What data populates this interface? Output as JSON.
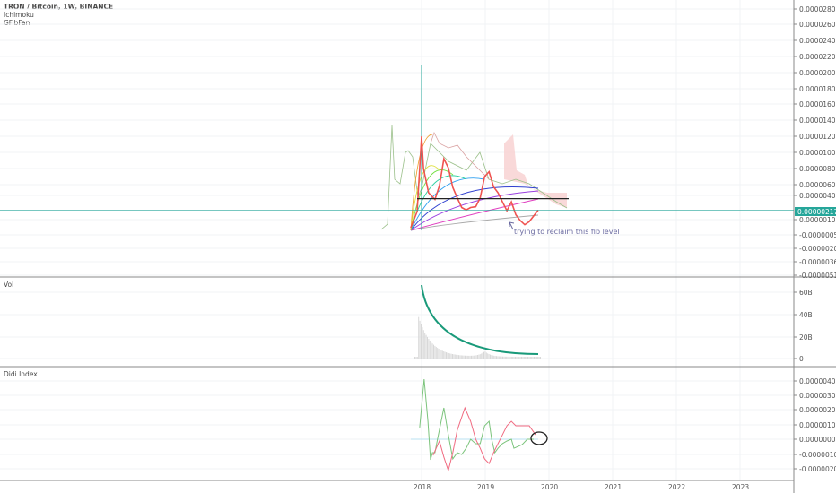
{
  "header": {
    "symbol_title": "TRON / Bitcoin, 1W, BINANCE",
    "indicators": [
      "Ichimoku",
      "GFibFan"
    ]
  },
  "colors": {
    "accent": "#26a69a",
    "price_up": "#26a69a",
    "price_down": "#ef5350",
    "didi_green": "#7cc47c",
    "didi_red": "#f06a80",
    "volume_curve": "#1a9a7a",
    "cloud": "#f8c8c8"
  },
  "chart_data": [
    {
      "type": "line",
      "pane": "price",
      "xlabel": "",
      "ylabel": "",
      "x_ticks": [
        "2018",
        "2019",
        "2020",
        "2021",
        "2022",
        "2023"
      ],
      "y_ticks": [
        "0.00002800",
        "0.00002600",
        "0.00002400",
        "0.00002200",
        "0.00002000",
        "0.00001800",
        "0.00001600",
        "0.00001400",
        "0.00001200",
        "0.00001000",
        "0.00000800",
        "0.00000600",
        "0.00000400",
        "0.00000100",
        "-0.00000050",
        "-0.00000200",
        "-0.00000360",
        "-0.00000510"
      ],
      "last_price_label": "0.00000217",
      "grid": true,
      "annotation": "trying to reclaim this fib level",
      "fib_level": 3.6e-06,
      "series": [
        {
          "x": [
            2017.83,
            2017.93,
            2018.0,
            2018.03,
            2018.11,
            2018.21,
            2018.28,
            2018.35,
            2018.42,
            2018.49,
            2018.56,
            2018.63,
            2018.7,
            2018.77,
            2018.85,
            2018.92,
            2018.99,
            2019.06,
            2019.13,
            2019.2,
            2019.27,
            2019.34,
            2019.41,
            2019.48,
            2019.55,
            2019.62,
            2019.69,
            2019.83
          ],
          "y": [
            2e-07,
            2e-06,
            1.2e-05,
            8e-06,
            4.5e-06,
            3.5e-06,
            5.8e-06,
            9.2e-06,
            8.1e-06,
            5.5e-06,
            3.7e-06,
            2.5e-06,
            2.2e-06,
            2.5e-06,
            2.6e-06,
            3.7e-06,
            7e-06,
            7.6e-06,
            5.6e-06,
            4.5e-06,
            3.2e-06,
            2.1e-06,
            3.2e-06,
            1.6e-06,
            9e-07,
            5e-07,
            8e-07,
            2.17e-06
          ]
        }
      ]
    },
    {
      "type": "bar",
      "pane": "volume",
      "title": "Vol",
      "y_ticks": [
        "60B",
        "40B",
        "20B",
        "0"
      ]
    },
    {
      "type": "line",
      "pane": "indicator",
      "title": "Didi Index",
      "y_ticks": [
        "0.00000400",
        "0.00000300",
        "0.00000200",
        "0.00000100",
        "0.00000000",
        "-0.00000100",
        "-0.00000200"
      ],
      "series": [
        {
          "color": "#7cc47c",
          "x": [
            2017.97,
            2018.04,
            2018.1,
            2018.14,
            2018.17,
            2018.21,
            2018.25,
            2018.35,
            2018.42,
            2018.49,
            2018.56,
            2018.63,
            2018.7,
            2018.77,
            2018.85,
            2018.92,
            2018.99,
            2019.06,
            2019.1,
            2019.15,
            2019.2,
            2019.27,
            2019.34,
            2019.41,
            2019.45,
            2019.52,
            2019.58,
            2019.66,
            2019.76
          ],
          "y": [
            7.9e-07,
            4.06e-06,
            1.21e-06,
            -1.39e-06,
            -9.1e-07,
            -9.1e-07,
            0,
            2.12e-06,
            3e-07,
            -1.33e-06,
            -9.1e-07,
            -1.03e-06,
            -6.1e-07,
            0,
            -3e-07,
            -3e-07,
            9.1e-07,
            1.21e-06,
            0,
            -9.1e-07,
            -6.1e-07,
            -3e-07,
            -1.2e-07,
            0,
            -6.1e-07,
            -4.8e-07,
            -3.6e-07,
            0,
            0
          ]
        },
        {
          "color": "#f06a80",
          "x": [
            2018.18,
            2018.28,
            2018.35,
            2018.42,
            2018.49,
            2018.56,
            2018.68,
            2018.77,
            2018.85,
            2018.92,
            2018.99,
            2019.06,
            2019.13,
            2019.2,
            2019.27,
            2019.34,
            2019.41,
            2019.48,
            2019.55,
            2019.69,
            2019.79
          ],
          "y": [
            -1.09e-06,
            -1.2e-07,
            -1.21e-06,
            -2.12e-06,
            -9.1e-07,
            6.1e-07,
            2.12e-06,
            1.21e-06,
            0,
            -6.1e-07,
            -1.33e-06,
            -1.64e-06,
            -9.1e-07,
            -3e-07,
            3e-07,
            9.1e-07,
            1.21e-06,
            9.1e-07,
            9.1e-07,
            9.1e-07,
            3e-07
          ]
        }
      ]
    }
  ]
}
